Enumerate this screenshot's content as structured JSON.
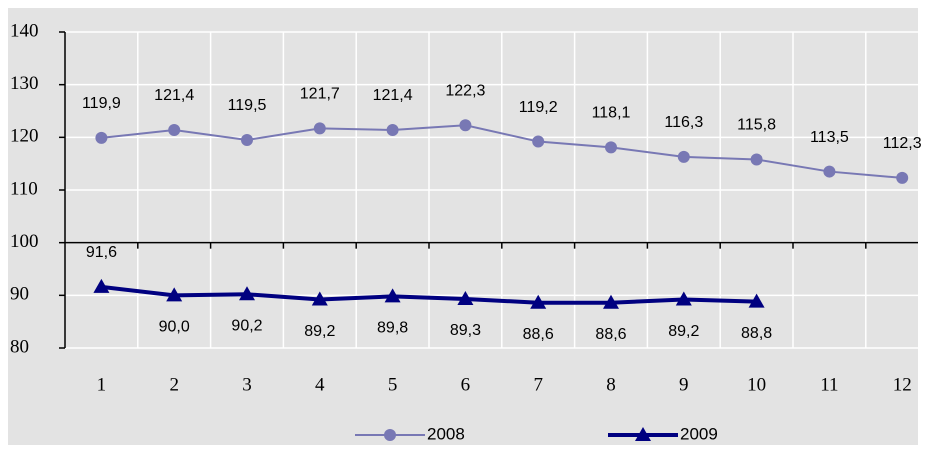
{
  "chart_data": {
    "type": "line",
    "categories": [
      "1",
      "2",
      "3",
      "4",
      "5",
      "6",
      "7",
      "8",
      "9",
      "10",
      "11",
      "12"
    ],
    "series": [
      {
        "name": "2008",
        "color": "#7878b4",
        "marker": "circle",
        "values": [
          119.9,
          121.4,
          119.5,
          121.7,
          121.4,
          122.3,
          119.2,
          118.1,
          116.3,
          115.8,
          113.5,
          112.3
        ],
        "value_labels": [
          "119,9",
          "121,4",
          "119,5",
          "121,7",
          "121,4",
          "122,3",
          "119,2",
          "118,1",
          "116,3",
          "115,8",
          "113,5",
          "112,3"
        ]
      },
      {
        "name": "2009",
        "color": "#000080",
        "marker": "triangle",
        "values": [
          91.6,
          90.0,
          90.2,
          89.2,
          89.8,
          89.3,
          88.6,
          88.6,
          89.2,
          88.8,
          null,
          null
        ],
        "value_labels": [
          "91,6",
          "90,0",
          "90,2",
          "89,2",
          "89,8",
          "89,3",
          "88,6",
          "88,6",
          "89,2",
          "88,8",
          null,
          null
        ]
      }
    ],
    "ylim": [
      80,
      140
    ],
    "yticks": [
      80,
      90,
      100,
      110,
      120,
      130,
      140
    ],
    "x_axis_crossing": 100,
    "grid": true,
    "legend": "bottom"
  }
}
